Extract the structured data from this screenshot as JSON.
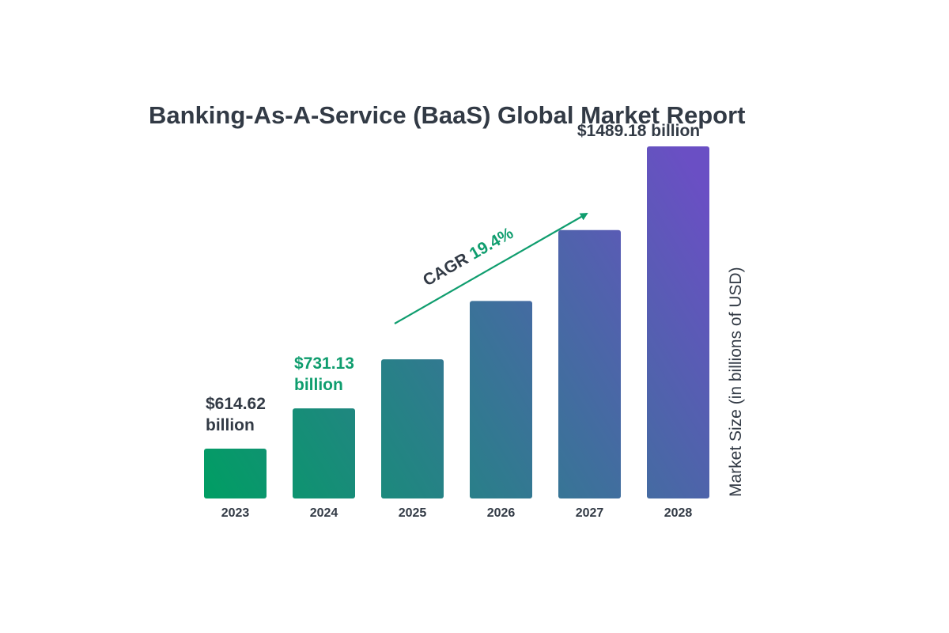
{
  "chart_data": {
    "type": "bar",
    "title": "Banking-As-A-Service (BaaS) Global Market Report",
    "categories": [
      "2023",
      "2024",
      "2025",
      "2026",
      "2027",
      "2028"
    ],
    "values": [
      614.62,
      731.13,
      873,
      1042,
      1247,
      1489.18
    ],
    "ylabel": "Market Size (in billions of USD)",
    "ylim": [
      500,
      1500
    ],
    "grid": false,
    "data_labels": [
      {
        "index": 0,
        "line1": "$614.62",
        "line2": "billion",
        "color": "#323a45"
      },
      {
        "index": 1,
        "line1": "$731.13",
        "line2": "billion",
        "color": "#0f9d6e"
      },
      {
        "index": 5,
        "line1": "$1489.18 billion",
        "line2": "",
        "color": "#323a45"
      }
    ],
    "annotation": {
      "prefix": "CAGR",
      "value": "19.4%"
    },
    "colors": {
      "start": "#009e63",
      "end": "#6a4fc4",
      "text": "#323a45",
      "accent": "#0f9d6e"
    }
  }
}
